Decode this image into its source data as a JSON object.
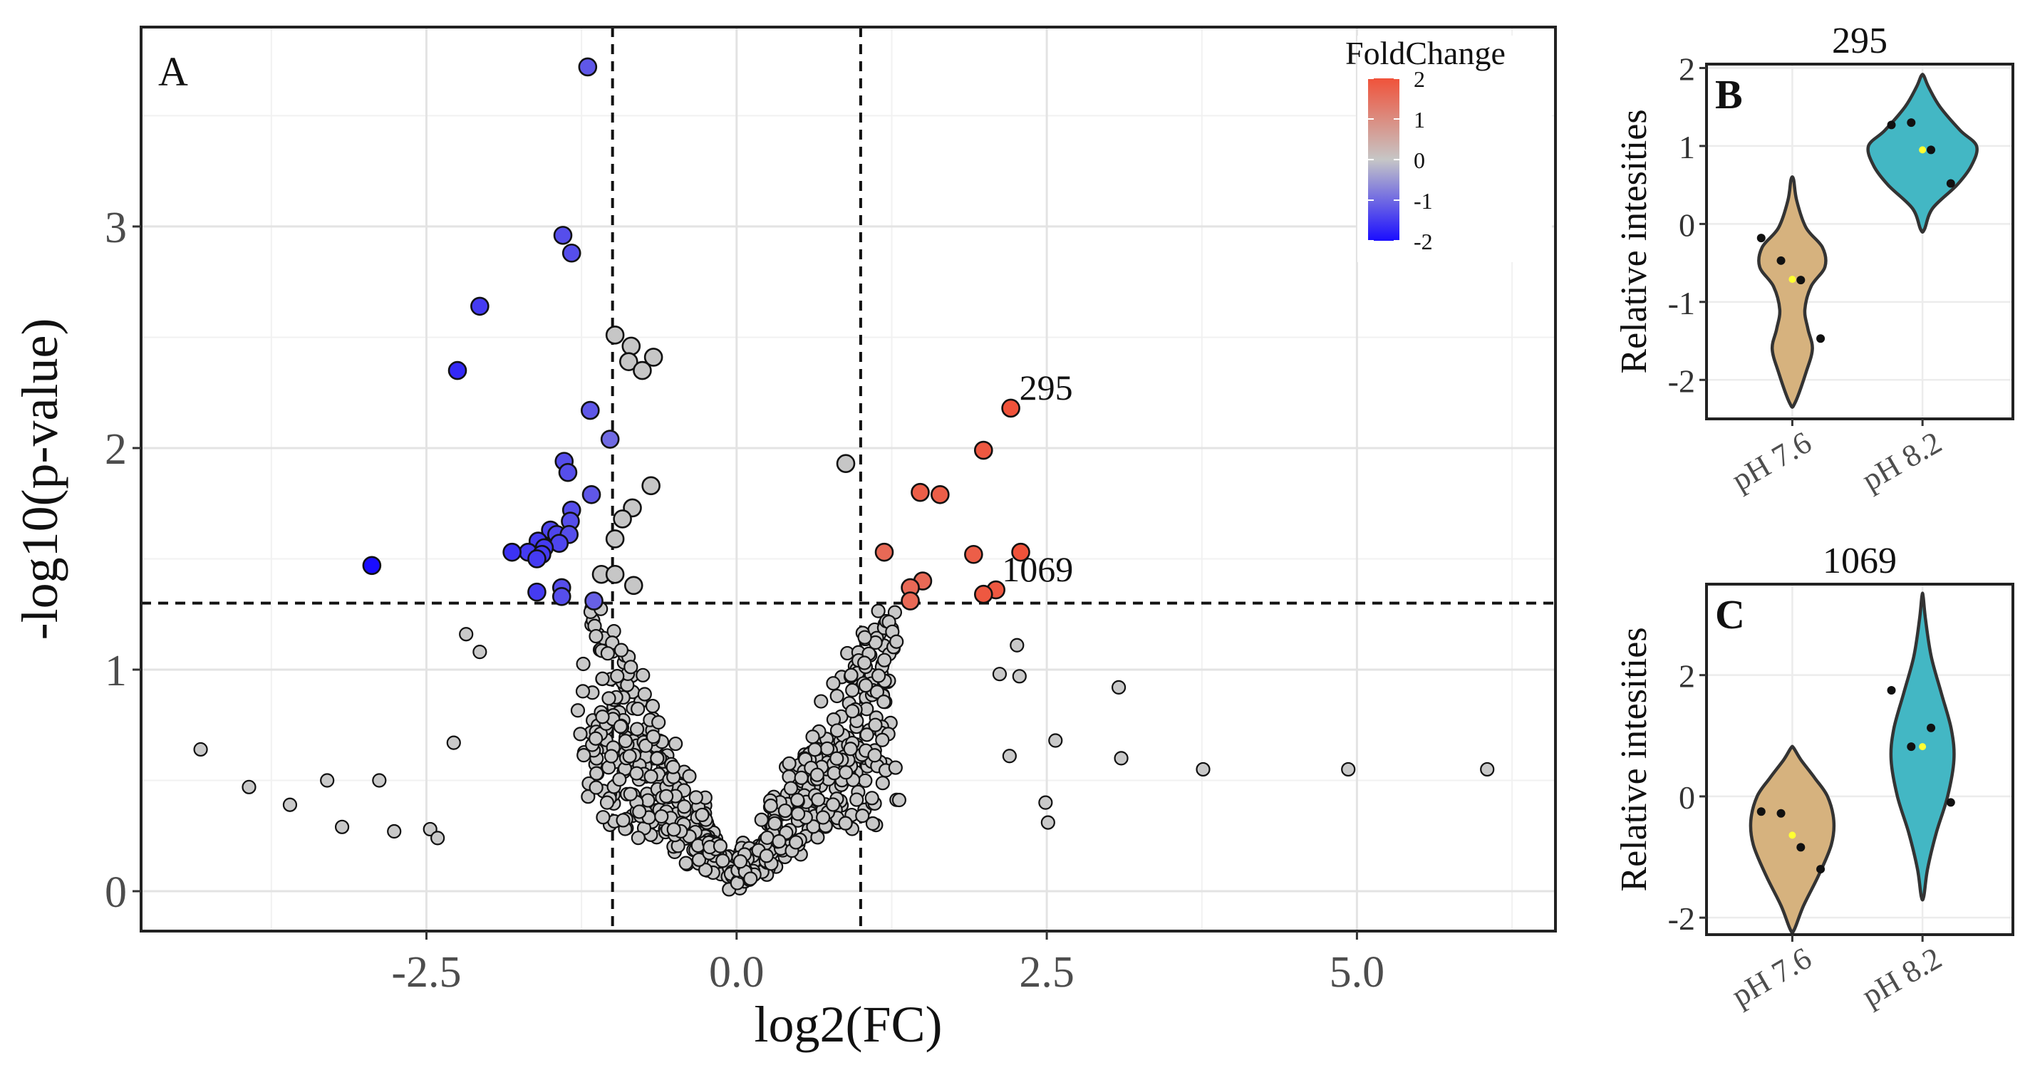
{
  "chart_data": [
    {
      "panel": "A",
      "type": "scatter",
      "xlabel": "log2(FC)",
      "ylabel": "-log10(p-value)",
      "xlim": [
        -4.8,
        6.6
      ],
      "ylim": [
        -0.18,
        3.9
      ],
      "xticks": [
        -2.5,
        0.0,
        2.5,
        5.0
      ],
      "xtick_labels": [
        "-2.5",
        "0.0",
        "2.5",
        "5.0"
      ],
      "yticks": [
        0,
        1,
        2,
        3
      ],
      "ytick_labels": [
        "0",
        "1",
        "2",
        "3"
      ],
      "grid": true,
      "thresholds": {
        "x": [
          -1,
          1
        ],
        "y": 1.3
      },
      "legend": {
        "title": "FoldChange",
        "position": "top-right",
        "min": -2,
        "max": 2,
        "tick_values": [
          2,
          1,
          0,
          -1,
          -2
        ],
        "tick_labels": [
          "2",
          "1",
          "0",
          "-1",
          "-2"
        ],
        "colors": {
          "low": "#1a0dff",
          "mid": "#c6c6c6",
          "high": "#f0523a"
        }
      },
      "annotations": [
        {
          "text": "295",
          "x": 2.21,
          "y": 2.18
        },
        {
          "text": "1069",
          "x": 2.07,
          "y": 1.36
        }
      ],
      "significant_points": [
        {
          "x": -1.2,
          "y": 3.72,
          "fc": -1.2
        },
        {
          "x": -1.4,
          "y": 2.96,
          "fc": -1.3
        },
        {
          "x": -1.33,
          "y": 2.88,
          "fc": -1.3
        },
        {
          "x": -2.07,
          "y": 2.64,
          "fc": -1.5
        },
        {
          "x": -2.25,
          "y": 2.35,
          "fc": -1.7
        },
        {
          "x": -1.18,
          "y": 2.17,
          "fc": -1.2
        },
        {
          "x": -1.02,
          "y": 2.04,
          "fc": -1.0
        },
        {
          "x": -1.39,
          "y": 1.94,
          "fc": -1.3
        },
        {
          "x": -1.36,
          "y": 1.89,
          "fc": -1.3
        },
        {
          "x": -1.17,
          "y": 1.79,
          "fc": -1.2
        },
        {
          "x": -1.33,
          "y": 1.72,
          "fc": -1.3
        },
        {
          "x": -1.34,
          "y": 1.67,
          "fc": -1.3
        },
        {
          "x": -1.5,
          "y": 1.63,
          "fc": -1.4
        },
        {
          "x": -1.45,
          "y": 1.61,
          "fc": -1.4
        },
        {
          "x": -1.35,
          "y": 1.61,
          "fc": -1.3
        },
        {
          "x": -1.43,
          "y": 1.57,
          "fc": -1.4
        },
        {
          "x": -1.6,
          "y": 1.58,
          "fc": -1.5
        },
        {
          "x": -1.55,
          "y": 1.55,
          "fc": -1.5
        },
        {
          "x": -1.68,
          "y": 1.53,
          "fc": -1.5
        },
        {
          "x": -1.57,
          "y": 1.52,
          "fc": -1.5
        },
        {
          "x": -1.61,
          "y": 1.5,
          "fc": -1.5
        },
        {
          "x": -1.81,
          "y": 1.53,
          "fc": -1.6
        },
        {
          "x": -1.41,
          "y": 1.37,
          "fc": -1.3
        },
        {
          "x": -1.61,
          "y": 1.35,
          "fc": -1.5
        },
        {
          "x": -1.41,
          "y": 1.33,
          "fc": -1.3
        },
        {
          "x": -1.15,
          "y": 1.31,
          "fc": -1.1
        },
        {
          "x": -2.94,
          "y": 1.47,
          "fc": -2.0
        },
        {
          "x": 2.21,
          "y": 2.18,
          "fc": 2.0
        },
        {
          "x": 1.99,
          "y": 1.99,
          "fc": 1.9
        },
        {
          "x": 1.48,
          "y": 1.8,
          "fc": 1.8
        },
        {
          "x": 1.64,
          "y": 1.79,
          "fc": 1.8
        },
        {
          "x": 1.19,
          "y": 1.53,
          "fc": 1.6
        },
        {
          "x": 1.91,
          "y": 1.52,
          "fc": 1.8
        },
        {
          "x": 2.29,
          "y": 1.53,
          "fc": 2.0
        },
        {
          "x": 1.5,
          "y": 1.4,
          "fc": 1.6
        },
        {
          "x": 1.4,
          "y": 1.37,
          "fc": 1.6
        },
        {
          "x": 1.4,
          "y": 1.31,
          "fc": 1.6
        },
        {
          "x": 2.09,
          "y": 1.36,
          "fc": 1.9
        },
        {
          "x": 1.99,
          "y": 1.34,
          "fc": 1.9
        }
      ],
      "nonsignificant_large_points": [
        {
          "x": -0.98,
          "y": 2.51
        },
        {
          "x": -0.85,
          "y": 2.46
        },
        {
          "x": -0.67,
          "y": 2.41
        },
        {
          "x": -0.87,
          "y": 2.39
        },
        {
          "x": -0.76,
          "y": 2.35
        },
        {
          "x": 0.88,
          "y": 1.93
        },
        {
          "x": -0.69,
          "y": 1.83
        },
        {
          "x": -0.84,
          "y": 1.73
        },
        {
          "x": -0.92,
          "y": 1.68
        },
        {
          "x": -0.98,
          "y": 1.59
        },
        {
          "x": -1.09,
          "y": 1.43
        },
        {
          "x": -0.98,
          "y": 1.43
        },
        {
          "x": -0.83,
          "y": 1.38
        }
      ],
      "background_points_rule": "deterministic scatter of about 600 points with |log2FC| up to 1 plus scattered outliers, -log10(p) rising roughly with |log2FC|",
      "outlier_points": [
        {
          "x": -4.32,
          "y": 0.64
        },
        {
          "x": -3.93,
          "y": 0.47
        },
        {
          "x": -3.6,
          "y": 0.39
        },
        {
          "x": -3.3,
          "y": 0.5
        },
        {
          "x": -3.18,
          "y": 0.29
        },
        {
          "x": -2.88,
          "y": 0.5
        },
        {
          "x": -2.76,
          "y": 0.27
        },
        {
          "x": -2.47,
          "y": 0.28
        },
        {
          "x": -2.41,
          "y": 0.24
        },
        {
          "x": -2.28,
          "y": 0.67
        },
        {
          "x": -2.18,
          "y": 1.16
        },
        {
          "x": -2.07,
          "y": 1.08
        },
        {
          "x": 2.57,
          "y": 0.68
        },
        {
          "x": 2.49,
          "y": 0.4
        },
        {
          "x": 2.51,
          "y": 0.31
        },
        {
          "x": 3.08,
          "y": 0.92
        },
        {
          "x": 3.1,
          "y": 0.6
        },
        {
          "x": 3.76,
          "y": 0.55
        },
        {
          "x": 4.93,
          "y": 0.55
        },
        {
          "x": 6.05,
          "y": 0.55
        },
        {
          "x": 2.26,
          "y": 1.11
        },
        {
          "x": 2.28,
          "y": 0.97
        },
        {
          "x": 2.12,
          "y": 0.98
        },
        {
          "x": 2.2,
          "y": 0.61
        }
      ]
    },
    {
      "panel": "B",
      "type": "violin",
      "title": "295",
      "ylabel": "Relative intesities",
      "ylim": [
        -2.5,
        2.05
      ],
      "yticks": [
        -2,
        -1,
        0,
        1,
        2
      ],
      "ytick_labels": [
        "-2",
        "-1",
        "0",
        "1",
        "2"
      ],
      "categories": [
        "pH 7.6",
        "pH 8.2"
      ],
      "colors": [
        "#d6b27e",
        "#43b7c4"
      ],
      "series": [
        {
          "category": "pH 7.6",
          "values": [
            -0.18,
            -0.47,
            -0.72,
            -1.47
          ],
          "mean": -0.71,
          "range": [
            -2.3,
            0.57
          ],
          "shape": [
            [
              -2.3,
              0.04
            ],
            [
              -1.9,
              0.22
            ],
            [
              -1.6,
              0.32
            ],
            [
              -1.35,
              0.25
            ],
            [
              -1.1,
              0.2
            ],
            [
              -0.8,
              0.3
            ],
            [
              -0.55,
              0.52
            ],
            [
              -0.3,
              0.48
            ],
            [
              -0.05,
              0.22
            ],
            [
              0.3,
              0.07
            ],
            [
              0.57,
              0.02
            ]
          ]
        },
        {
          "category": "pH 8.2",
          "values": [
            1.27,
            1.3,
            0.95,
            0.52
          ],
          "mean": 0.95,
          "range": [
            -0.07,
            1.9
          ],
          "shape": [
            [
              -0.07,
              0.03
            ],
            [
              0.2,
              0.16
            ],
            [
              0.5,
              0.55
            ],
            [
              0.75,
              0.78
            ],
            [
              1.0,
              0.86
            ],
            [
              1.2,
              0.6
            ],
            [
              1.5,
              0.28
            ],
            [
              1.75,
              0.1
            ],
            [
              1.9,
              0.02
            ]
          ]
        }
      ]
    },
    {
      "panel": "C",
      "type": "violin",
      "title": "1069",
      "ylabel": "Relative intesities",
      "ylim": [
        -2.28,
        3.5
      ],
      "yticks": [
        -2,
        0,
        2
      ],
      "ytick_labels": [
        "-2",
        "0",
        "2"
      ],
      "categories": [
        "pH 7.6",
        "pH 8.2"
      ],
      "colors": [
        "#d6b27e",
        "#43b7c4"
      ],
      "series": [
        {
          "category": "pH 7.6",
          "values": [
            -0.25,
            -0.28,
            -0.84,
            -1.2
          ],
          "mean": -0.64,
          "range": [
            -2.2,
            0.8
          ],
          "shape": [
            [
              -2.2,
              0.03
            ],
            [
              -1.8,
              0.18
            ],
            [
              -1.3,
              0.42
            ],
            [
              -0.8,
              0.62
            ],
            [
              -0.4,
              0.66
            ],
            [
              0.0,
              0.56
            ],
            [
              0.3,
              0.36
            ],
            [
              0.6,
              0.14
            ],
            [
              0.8,
              0.02
            ]
          ]
        },
        {
          "category": "pH 8.2",
          "values": [
            1.75,
            0.82,
            1.13,
            -0.1
          ],
          "mean": 0.82,
          "range": [
            -1.65,
            3.3
          ],
          "shape": [
            [
              -1.65,
              0.02
            ],
            [
              -1.2,
              0.08
            ],
            [
              -0.6,
              0.22
            ],
            [
              0.0,
              0.4
            ],
            [
              0.6,
              0.5
            ],
            [
              1.1,
              0.46
            ],
            [
              1.7,
              0.3
            ],
            [
              2.3,
              0.14
            ],
            [
              2.9,
              0.05
            ],
            [
              3.3,
              0.01
            ]
          ]
        }
      ]
    }
  ]
}
